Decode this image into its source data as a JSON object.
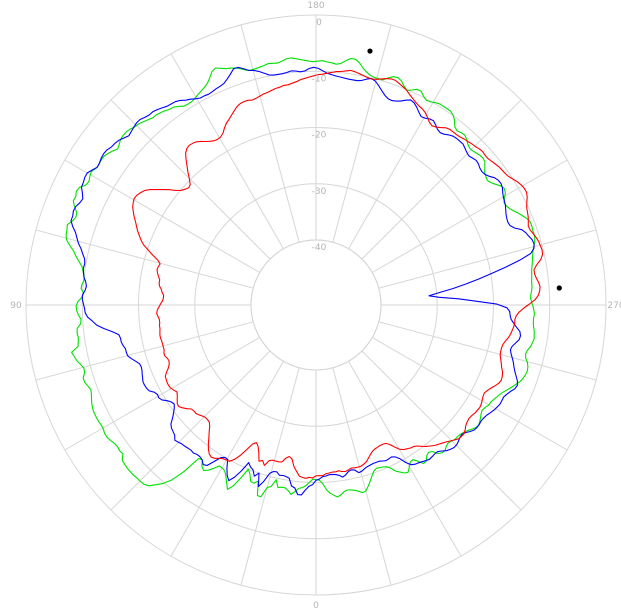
{
  "chart_data": {
    "type": "line",
    "subtype": "polar",
    "title": "",
    "angle_labels": [
      {
        "deg": 180,
        "label": "180"
      },
      {
        "deg": 90,
        "label": "90"
      },
      {
        "deg": 270,
        "label": "270"
      },
      {
        "deg": 0,
        "label": "0"
      }
    ],
    "radial_labels": [
      {
        "value": 0,
        "label": "0"
      },
      {
        "value": -10,
        "label": "-10"
      },
      {
        "value": -20,
        "label": "-20"
      },
      {
        "value": -30,
        "label": "-30"
      },
      {
        "value": -40,
        "label": "-40"
      }
    ],
    "r_range": [
      -40,
      0
    ],
    "spoke_step_deg": 15,
    "grid": true,
    "series": [
      {
        "color": "#00e000",
        "r": [
          -20.5,
          -20.6,
          -20.0,
          -19.4,
          -19.0,
          -18.8,
          -18.2,
          -17.6,
          -18.2,
          -18.6,
          -18.6,
          -18.4,
          -19.7,
          -18.3,
          -18.0,
          -16.1,
          -16.1,
          -18.6,
          -18.0,
          -18.1,
          -19.3,
          -20.0,
          -18.0,
          -16.2,
          -15.2,
          -16.2,
          -17.2,
          -17.9,
          -18.1,
          -18.2,
          -17.3,
          -16.5,
          -16.0,
          -16.4,
          -17.4,
          -17.2,
          -13.6,
          -11.2,
          -9.8,
          -8.8,
          -7.8,
          -7.4,
          -7.3,
          -7.3,
          -7.2,
          -7.2,
          -7.2,
          -7.3,
          -7.4,
          -8.2,
          -8.1,
          -8.2,
          -8.1,
          -7.8,
          -7.6,
          -7.6,
          -7.8,
          -7.8,
          -7.7,
          -7.7,
          -7.7,
          -7.8,
          -8.0,
          -8.3,
          -8.6,
          -8.8,
          -8.5,
          -8.2,
          -8.2,
          -8.7,
          -8.8,
          -8.4,
          -7.9,
          -7.6,
          -7.3,
          -8.6,
          -8.8,
          -8.9,
          -8.8,
          -8.9,
          -9.6,
          -9.7,
          -9.3,
          -9.0,
          -8.9,
          -9.2,
          -9.9,
          -10.2,
          -9.7,
          -9.8,
          -10.1,
          -10.0,
          -9.7,
          -9.4,
          -8.7,
          -8.0,
          -7.4,
          -6.5,
          -5.7,
          -5.4,
          -5.3,
          -5.1,
          -5.7,
          -6.1,
          -6.0,
          -5.2,
          -4.6,
          -4.7,
          -4.4,
          -4.6,
          -5.4,
          -5.6,
          -5.3,
          -5.1,
          -5.5,
          -5.6,
          -5.5,
          -5.5,
          -5.8,
          -6.2,
          -6.7,
          -6.4,
          -6.0,
          -5.9,
          -5.9,
          -6.1,
          -6.4,
          -6.5,
          -6.8,
          -7.1,
          -7.4,
          -7.4,
          -7.6,
          -7.8,
          -8.1,
          -8.2,
          -8.6,
          -9.1,
          -9.2,
          -9.2,
          -9.0,
          -8.7,
          -8.4,
          -8.1,
          -7.7,
          -7.0,
          -6.1,
          -5.8,
          -6.2,
          -6.6,
          -6.8,
          -7.1,
          -7.5,
          -8.0,
          -8.2,
          -8.2,
          -8.1,
          -8.0,
          -7.8,
          -7.9,
          -8.0,
          -7.8,
          -7.5,
          -7.4,
          -7.6,
          -7.8,
          -8.0,
          -8.2,
          -8.3,
          -8.2,
          -8.1,
          -8.3,
          -8.4,
          -8.6,
          -8.4,
          -7.8,
          -7.3,
          -7.3,
          -7.8,
          -8.6,
          -9.2,
          -9.6,
          -9.8,
          -9.8,
          -9.8,
          -9.2,
          -8.7,
          -8.6,
          -8.9,
          -9.6,
          -10.1,
          -9.7,
          -9.2,
          -9.2,
          -9.8,
          -10.2,
          -10.1,
          -9.8,
          -9.6,
          -9.6,
          -9.6,
          -9.6,
          -9.9,
          -10.5,
          -11.4,
          -11.7,
          -11.5,
          -11.4,
          -11.7,
          -12.2,
          -12.5,
          -12.5,
          -12.3,
          -12.1,
          -12.0,
          -12.2,
          -12.8,
          -13.4,
          -13.7,
          -13.9,
          -13.6,
          -13.1,
          -12.5,
          -12.2,
          -12.4,
          -13.0,
          -13.5,
          -13.4,
          -13.1,
          -12.6,
          -12.0,
          -11.5,
          -11.0,
          -10.7,
          -10.7,
          -10.8,
          -10.8,
          -10.9,
          -11.2,
          -11.6,
          -11.9,
          -12.1,
          -12.3,
          -12.5,
          -12.7,
          -12.8,
          -12.9,
          -13.0,
          -13.0,
          -13.1,
          -13.3,
          -13.4,
          -13.2,
          -13.0,
          -12.8,
          -12.7,
          -12.8,
          -12.8,
          -12.7,
          -12.5,
          -12.4,
          -12.3,
          -12.5,
          -12.7,
          -13.1,
          -13.3,
          -13.1,
          -12.6,
          -12.3,
          -12.2,
          -12.3,
          -12.5,
          -12.8,
          -13.3,
          -13.8,
          -14.3,
          -14.8,
          -15.2,
          -15.5,
          -15.8,
          -16.0,
          -16.1,
          -16.4,
          -16.6,
          -16.4,
          -16.1,
          -15.8,
          -15.6,
          -15.8,
          -16.2,
          -16.6,
          -16.9,
          -17.1,
          -17.2,
          -17.2,
          -17.4,
          -17.6,
          -17.4,
          -17.0,
          -17.0,
          -17.3,
          -18.3,
          -18.6,
          -18.3,
          -17.6,
          -17.5,
          -18.4,
          -19.1,
          -19.0,
          -18.3,
          -17.6,
          -17.8,
          -18.3,
          -18.8,
          -19.7,
          -20.2,
          -20.4,
          -20.5,
          -20.6,
          -20.3,
          -19.6,
          -18.8,
          -18.0,
          -17.3,
          -17.2,
          -17.6,
          -17.9,
          -18.1,
          -18.2,
          -18.0,
          -17.5,
          -17.2,
          -17.6,
          -18.0,
          -18.7,
          -19.8,
          -20.4
        ]
      },
      {
        "color": "#0000ff",
        "r": [
          -20.4,
          -19.6,
          -19.3,
          -18.6,
          -17.7,
          -17.7,
          -18.8,
          -19.1,
          -20.4,
          -20.6,
          -20.7,
          -20.6,
          -21.1,
          -21.0,
          -20.5,
          -18.8,
          -17.7,
          -20.0,
          -19.2,
          -20.2,
          -20.5,
          -21.1,
          -19.2,
          -17.7,
          -16.7,
          -17.4,
          -18.5,
          -19.9,
          -20.0,
          -19.6,
          -18.4,
          -17.1,
          -16.8,
          -17.4,
          -17.6,
          -17.6,
          -17.4,
          -17.5,
          -17.4,
          -17.3,
          -17.2,
          -17.0,
          -16.8,
          -17.4,
          -17.6,
          -17.8,
          -18.2,
          -19.1,
          -19.8,
          -20.4,
          -20.8,
          -20.6,
          -20.1,
          -19.4,
          -19.1,
          -19.2,
          -18.9,
          -18.2,
          -18.0,
          -17.9,
          -17.9,
          -18.1,
          -18.3,
          -18.5,
          -18.6,
          -18.5,
          -18.0,
          -17.4,
          -16.9,
          -16.8,
          -16.8,
          -16.5,
          -16.3,
          -16.3,
          -16.1,
          -15.0,
          -13.6,
          -12.4,
          -11.7,
          -10.9,
          -10.5,
          -10.4,
          -10.2,
          -10.0,
          -10.0,
          -10.4,
          -10.6,
          -10.4,
          -10.0,
          -9.8,
          -9.7,
          -9.8,
          -9.6,
          -9.1,
          -8.6,
          -7.9,
          -7.4,
          -6.9,
          -6.1,
          -5.5,
          -5.5,
          -5.3,
          -5.4,
          -5.8,
          -6.0,
          -5.5,
          -4.9,
          -4.8,
          -4.6,
          -4.6,
          -5.1,
          -5.6,
          -5.5,
          -5.3,
          -5.2,
          -5.3,
          -5.6,
          -5.7,
          -5.9,
          -6.3,
          -6.7,
          -6.5,
          -6.3,
          -6.1,
          -6.1,
          -6.4,
          -6.6,
          -6.6,
          -6.8,
          -7.1,
          -7.4,
          -7.5,
          -7.6,
          -7.9,
          -8.4,
          -8.7,
          -9.1,
          -9.4,
          -9.4,
          -9.5,
          -9.4,
          -9.2,
          -9.1,
          -8.9,
          -8.4,
          -7.8,
          -7.1,
          -7.1,
          -7.6,
          -8.2,
          -8.4,
          -8.8,
          -9.3,
          -9.8,
          -10.0,
          -10.0,
          -10.0,
          -9.9,
          -9.7,
          -9.8,
          -10.0,
          -9.9,
          -9.5,
          -9.3,
          -9.5,
          -9.9,
          -10.3,
          -10.5,
          -10.7,
          -10.8,
          -10.9,
          -11.0,
          -11.0,
          -11.0,
          -10.8,
          -10.4,
          -10.1,
          -10.4,
          -11.0,
          -11.7,
          -12.3,
          -12.7,
          -12.8,
          -12.6,
          -12.3,
          -11.8,
          -11.4,
          -11.6,
          -12.1,
          -12.7,
          -13.2,
          -13.1,
          -12.8,
          -12.7,
          -13.1,
          -13.6,
          -13.8,
          -13.6,
          -13.2,
          -12.9,
          -12.8,
          -12.8,
          -12.8,
          -13.1,
          -13.4,
          -13.6,
          -13.4,
          -13.2,
          -13.3,
          -13.6,
          -13.7,
          -13.6,
          -13.2,
          -12.6,
          -12.3,
          -12.2,
          -12.4,
          -12.8,
          -13.1,
          -13.3,
          -13.5,
          -13.8,
          -14.1,
          -14.3,
          -14.4,
          -14.3,
          -13.7,
          -12.6,
          -12.1,
          -11.8,
          -11.4,
          -11.3,
          -11.5,
          -12.3,
          -14.5,
          -17.2,
          -19.8,
          -22.2,
          -24.6,
          -27.0,
          -29.4,
          -31.4,
          -29.6,
          -26.2,
          -23.1,
          -19.4,
          -17.6,
          -17.1,
          -17.0,
          -16.8,
          -16.3,
          -15.7,
          -15.0,
          -14.8,
          -14.9,
          -15.4,
          -15.9,
          -16.1,
          -15.8,
          -15.4,
          -15.0,
          -14.7,
          -14.3,
          -13.8,
          -13.3,
          -13.0,
          -13.2,
          -13.7,
          -14.1,
          -14.4,
          -14.4,
          -14.4,
          -14.6,
          -14.8,
          -15.1,
          -15.4,
          -15.6,
          -15.7,
          -15.6,
          -15.6,
          -15.7,
          -16.1,
          -16.6,
          -16.9,
          -16.8,
          -16.5,
          -16.3,
          -16.3,
          -16.5,
          -16.8,
          -17.3,
          -17.7,
          -17.7,
          -17.6,
          -17.5,
          -17.7,
          -17.9,
          -18.1,
          -18.2,
          -18.5,
          -19.3,
          -20.4,
          -21.1,
          -21.4,
          -21.3,
          -21.2,
          -21.4,
          -21.6,
          -21.6,
          -21.6,
          -21.5,
          -21.4,
          -21.2,
          -20.9,
          -20.8,
          -21.4,
          -21.6,
          -21.4,
          -20.9,
          -20.6,
          -21.0,
          -21.2,
          -21.3,
          -21.3,
          -21.1,
          -21.0,
          -20.6
        ]
      },
      {
        "color": "#ff0000",
        "r": [
          -21.2,
          -20.8,
          -20.9,
          -20.7,
          -20.8,
          -21.0,
          -21.8,
          -22.6,
          -23.9,
          -24.2,
          -23.8,
          -23.0,
          -22.9,
          -22.9,
          -22.9,
          -22.7,
          -21.6,
          -22.3,
          -22.0,
          -23.4,
          -24.4,
          -24.9,
          -24.4,
          -23.0,
          -21.6,
          -20.5,
          -19.8,
          -19.7,
          -19.6,
          -19.3,
          -18.9,
          -18.7,
          -19.0,
          -19.6,
          -20.4,
          -21.3,
          -22.1,
          -22.9,
          -23.4,
          -23.5,
          -23.5,
          -23.3,
          -23.0,
          -22.8,
          -22.8,
          -22.7,
          -22.1,
          -21.6,
          -21.2,
          -21.3,
          -21.7,
          -22.1,
          -22.4,
          -22.1,
          -21.8,
          -21.7,
          -21.7,
          -21.8,
          -21.9,
          -22.4,
          -23.0,
          -23.4,
          -23.6,
          -23.5,
          -23.2,
          -23.2,
          -23.4,
          -23.4,
          -23.4,
          -23.4,
          -23.3,
          -23.3,
          -23.4,
          -23.5,
          -23.5,
          -23.6,
          -23.6,
          -23.4,
          -23.2,
          -23.3,
          -23.6,
          -23.9,
          -24.2,
          -24.4,
          -24.4,
          -24.1,
          -23.9,
          -23.5,
          -23.4,
          -23.4,
          -23.1,
          -22.8,
          -22.6,
          -22.7,
          -22.9,
          -22.3,
          -21.2,
          -20.2,
          -19.1,
          -18.4,
          -17.8,
          -17.2,
          -16.7,
          -16.2,
          -15.6,
          -15.1,
          -14.6,
          -14.3,
          -14.1,
          -14.2,
          -14.5,
          -14.9,
          -15.6,
          -16.6,
          -17.5,
          -18.4,
          -19.4,
          -20.1,
          -20.5,
          -20.8,
          -20.6,
          -19.8,
          -18.8,
          -17.9,
          -16.9,
          -16.0,
          -15.5,
          -15.3,
          -15.4,
          -15.6,
          -16.0,
          -16.5,
          -16.9,
          -17.2,
          -17.3,
          -17.2,
          -16.8,
          -16.1,
          -15.5,
          -15.1,
          -14.6,
          -14.1,
          -13.6,
          -13.3,
          -13.2,
          -13.2,
          -13.4,
          -13.3,
          -13.1,
          -12.9,
          -12.8,
          -12.6,
          -12.4,
          -12.3,
          -12.1,
          -12.1,
          -11.9,
          -11.7,
          -11.4,
          -11.2,
          -11.0,
          -10.8,
          -10.6,
          -10.5,
          -10.3,
          -10.1,
          -9.9,
          -9.8,
          -9.6,
          -9.4,
          -9.5,
          -9.7,
          -9.9,
          -10.1,
          -10.2,
          -10.0,
          -9.7,
          -9.4,
          -9.2,
          -9.2,
          -9.5,
          -9.8,
          -10.1,
          -10.6,
          -11.0,
          -11.4,
          -11.7,
          -11.9,
          -12.2,
          -12.7,
          -13.3,
          -13.6,
          -13.4,
          -13.0,
          -12.5,
          -12.3,
          -12.3,
          -12.3,
          -12.2,
          -12.0,
          -11.9,
          -11.7,
          -11.6,
          -11.4,
          -11.3,
          -11.4,
          -11.4,
          -11.2,
          -11.0,
          -10.8,
          -10.7,
          -10.6,
          -10.4,
          -10.0,
          -9.6,
          -9.3,
          -9.1,
          -9.1,
          -9.4,
          -9.9,
          -10.3,
          -10.5,
          -10.7,
          -11.0,
          -11.3,
          -11.2,
          -10.9,
          -10.6,
          -10.4,
          -10.3,
          -10.2,
          -10.3,
          -10.8,
          -11.7,
          -12.3,
          -12.3,
          -12.1,
          -11.8,
          -11.6,
          -11.7,
          -12.0,
          -12.6,
          -13.6,
          -14.6,
          -15.4,
          -15.9,
          -16.1,
          -16.1,
          -16.2,
          -16.4,
          -16.6,
          -16.9,
          -17.3,
          -17.6,
          -17.7,
          -17.7,
          -17.6,
          -17.3,
          -17.0,
          -16.7,
          -16.3,
          -16.1,
          -16.0,
          -16.2,
          -16.6,
          -17.1,
          -17.5,
          -17.8,
          -17.7,
          -17.5,
          -17.3,
          -17.2,
          -17.3,
          -17.4,
          -17.6,
          -17.7,
          -17.6,
          -17.4,
          -17.0,
          -16.7,
          -16.7,
          -16.8,
          -17.2,
          -17.6,
          -18.0,
          -18.3,
          -18.6,
          -18.9,
          -19.3,
          -19.7,
          -20.2,
          -20.7,
          -21.0,
          -21.1,
          -21.3,
          -21.5,
          -21.9,
          -22.7,
          -23.5,
          -24.0,
          -24.1,
          -24.1,
          -24.0,
          -23.9,
          -23.7,
          -23.3,
          -22.8,
          -22.3,
          -22.0,
          -21.8,
          -21.8,
          -21.8,
          -21.9,
          -21.7,
          -21.5,
          -21.6,
          -21.8,
          -21.7,
          -21.7,
          -21.6,
          -21.5,
          -21.2,
          -21.2
        ]
      }
    ],
    "markers": [
      {
        "angle": 192,
        "r": -5.4
      },
      {
        "angle": 266,
        "r": -8.2
      }
    ]
  }
}
